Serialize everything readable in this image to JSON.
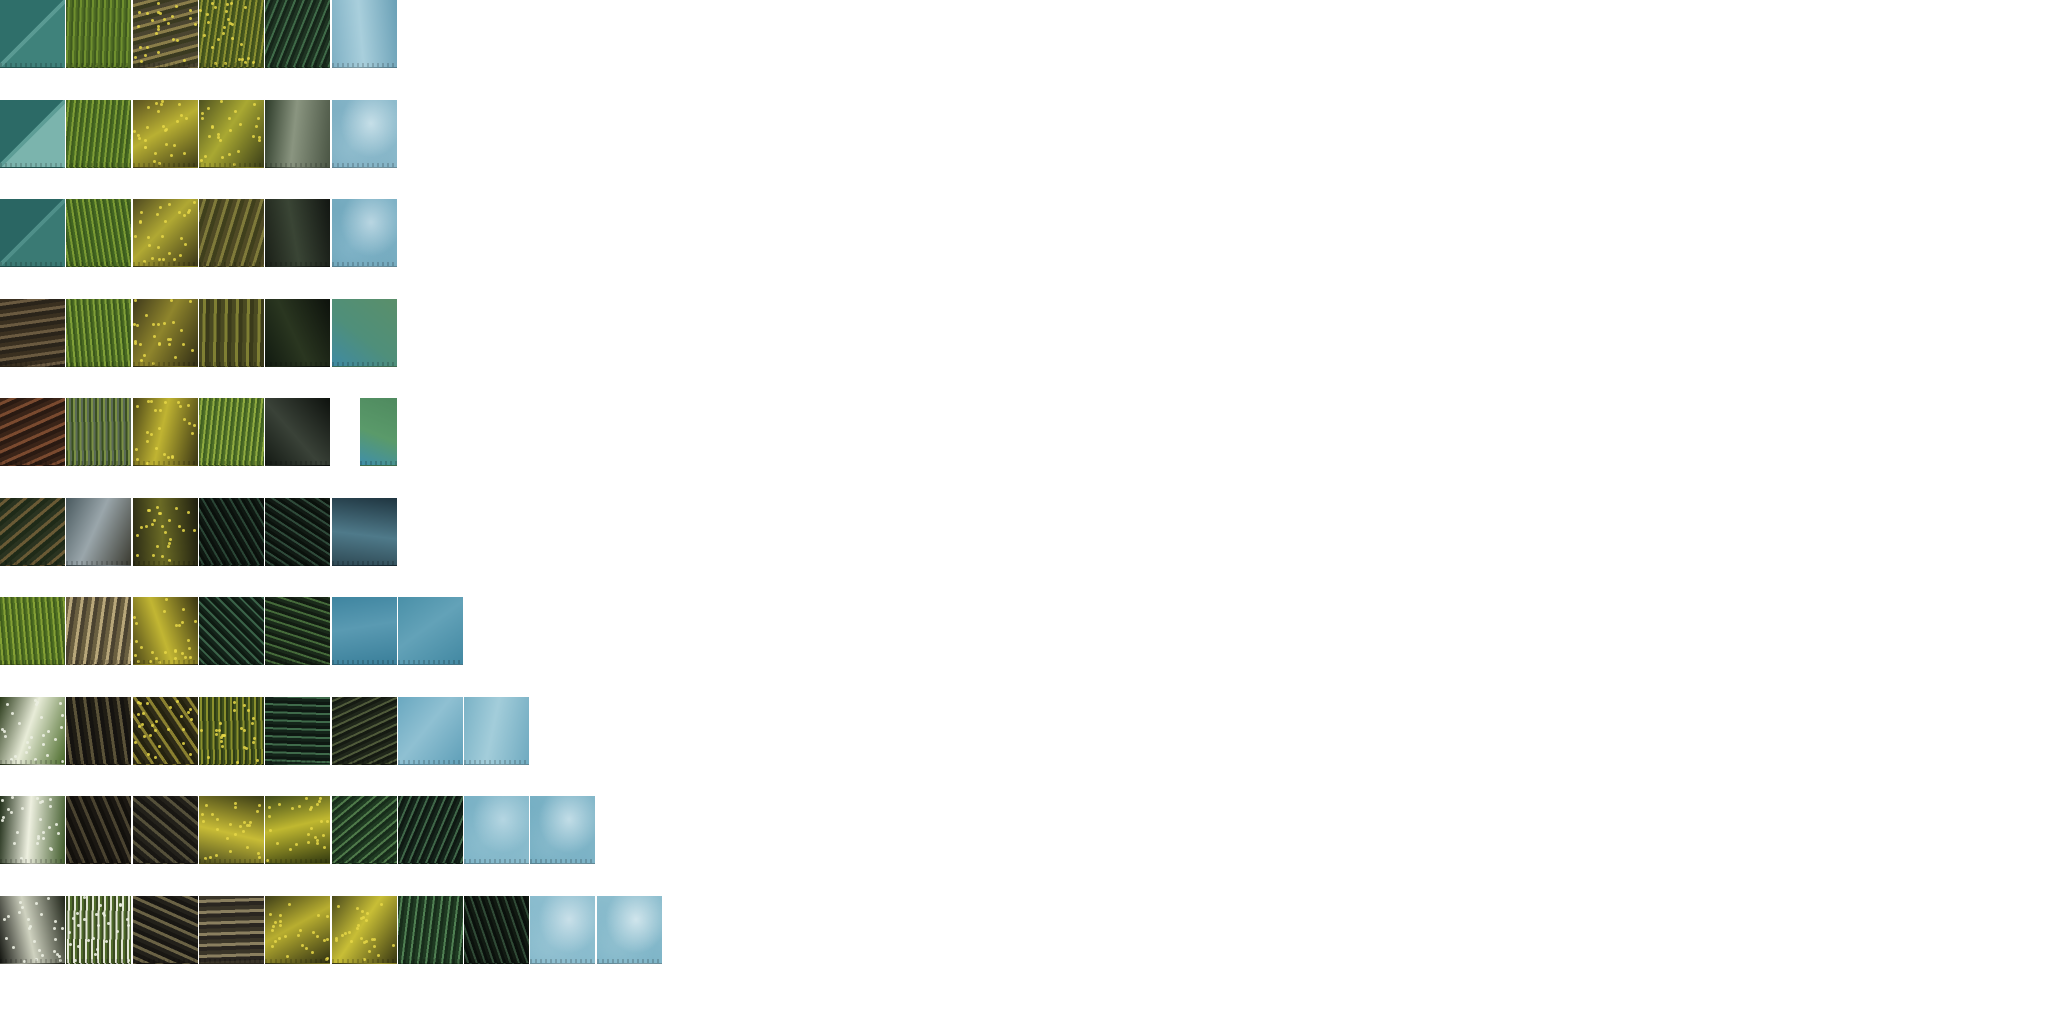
{
  "atlas": {
    "rows": [
      {
        "tiles": [
          {
            "type": "roof-teal",
            "colors": [
              "#2f6f6a",
              "#5a9a93",
              "#3f827b"
            ]
          },
          {
            "type": "grass",
            "colors": [
              "#3f5a1e",
              "#6f8f2e",
              "#4f6c24"
            ]
          },
          {
            "type": "wood-foliage",
            "colors": [
              "#4a4530",
              "#8a7d4a",
              "#3a3a20"
            ]
          },
          {
            "type": "grass-foliage",
            "colors": [
              "#4a5a20",
              "#8a8f30",
              "#3f4f1a"
            ]
          },
          {
            "type": "fern-dark",
            "colors": [
              "#1e3322",
              "#3f6a48",
              "#152519"
            ]
          },
          {
            "type": "sky",
            "colors": [
              "#7fb0c4",
              "#a9cfdc",
              "#6aa0b6"
            ]
          }
        ]
      },
      {
        "tiles": [
          {
            "type": "roof-teal",
            "colors": [
              "#2c6a66",
              "#5d9d96",
              "#7bb4ad"
            ]
          },
          {
            "type": "grass",
            "colors": [
              "#476a22",
              "#7d9c35",
              "#3e5c1d"
            ]
          },
          {
            "type": "yellow-foliage",
            "colors": [
              "#5a5220",
              "#b9b033",
              "#3f3d18"
            ]
          },
          {
            "type": "yellow-foliage",
            "colors": [
              "#4f5220",
              "#a9a832",
              "#3a3e18"
            ]
          },
          {
            "type": "rock",
            "colors": [
              "#2c3a28",
              "#8a9580",
              "#4a5544"
            ]
          },
          {
            "type": "sky-cloud",
            "colors": [
              "#78abc0",
              "#c6dfe8",
              "#8fbccd"
            ]
          }
        ]
      },
      {
        "tiles": [
          {
            "type": "roof-teal",
            "colors": [
              "#2a6663",
              "#4f8f89",
              "#3a7a74"
            ]
          },
          {
            "type": "grass",
            "colors": [
              "#436622",
              "#7a9a33",
              "#3a5a1c"
            ]
          },
          {
            "type": "yellow-foliage",
            "colors": [
              "#4f4a20",
              "#b0a833",
              "#3a3618"
            ]
          },
          {
            "type": "bark-grass",
            "colors": [
              "#4f4a25",
              "#7f7a3a",
              "#3f3f1c"
            ]
          },
          {
            "type": "dark-forest",
            "colors": [
              "#1a1f17",
              "#3a4535",
              "#121612"
            ]
          },
          {
            "type": "sky-cloud",
            "colors": [
              "#6ba3b8",
              "#b9d6e2",
              "#80b3c7"
            ]
          }
        ]
      },
      {
        "tiles": [
          {
            "type": "wood-shingle",
            "colors": [
              "#3a3020",
              "#6a5a40",
              "#2a241a"
            ]
          },
          {
            "type": "grass",
            "colors": [
              "#4a6a22",
              "#809f38",
              "#3a581c"
            ]
          },
          {
            "type": "foliage-bark",
            "colors": [
              "#3f3a1c",
              "#8f852c",
              "#2f2c15"
            ]
          },
          {
            "type": "bark-grass",
            "colors": [
              "#4a4a22",
              "#7f7f33",
              "#3a3a1a"
            ]
          },
          {
            "type": "dark-forest",
            "colors": [
              "#111a10",
              "#2a3620",
              "#0d120c"
            ]
          },
          {
            "type": "sky-ground",
            "colors": [
              "#3f8aa3",
              "#4f8f7a",
              "#5a8f6a"
            ]
          }
        ]
      },
      {
        "tiles": [
          {
            "type": "wood-red",
            "colors": [
              "#3a2418",
              "#7a4a2f",
              "#2a1a12"
            ]
          },
          {
            "type": "grass-wood",
            "colors": [
              "#3a4f22",
              "#7a8f45",
              "#5a6a55"
            ]
          },
          {
            "type": "yellow-foliage",
            "colors": [
              "#4a4518",
              "#c0b432",
              "#3a3614"
            ]
          },
          {
            "type": "grass",
            "colors": [
              "#4f6f28",
              "#8faa3f",
              "#3f5f20"
            ]
          },
          {
            "type": "dark-rock",
            "colors": [
              "#141a14",
              "#3a4238",
              "#0e120e"
            ]
          },
          {
            "type": "sky-ground-partial",
            "colors": [
              "#3f8faa",
              "#5a9a6a",
              "#4f8a5f"
            ]
          }
        ]
      },
      {
        "tiles": [
          {
            "type": "wood-green",
            "colors": [
              "#2a3320",
              "#6a5a35",
              "#1f2a18"
            ]
          },
          {
            "type": "metal-wood",
            "colors": [
              "#4a5a5f",
              "#9aa6ab",
              "#3a3a30"
            ]
          },
          {
            "type": "foliage-dark",
            "colors": [
              "#2a2a15",
              "#6a6a25",
              "#1f1f10"
            ]
          },
          {
            "type": "fern-black",
            "colors": [
              "#0f1812",
              "#2a4535",
              "#0a100c"
            ]
          },
          {
            "type": "fern-black",
            "colors": [
              "#111a14",
              "#2f4a3a",
              "#0a110c"
            ]
          },
          {
            "type": "sky-dark",
            "colors": [
              "#2f4a55",
              "#4f7a8a",
              "#1f3540"
            ]
          }
        ]
      },
      {
        "tiles": [
          {
            "type": "grass",
            "colors": [
              "#4f6f22",
              "#84a035",
              "#3f5c1c"
            ]
          },
          {
            "type": "bark-light",
            "colors": [
              "#6a5f40",
              "#b8a77a",
              "#4a4230"
            ]
          },
          {
            "type": "yellow-foliage",
            "colors": [
              "#4a4518",
              "#c2b633",
              "#383412"
            ]
          },
          {
            "type": "fern-dark",
            "colors": [
              "#14241a",
              "#3a6248",
              "#0e1a12"
            ]
          },
          {
            "type": "fern-dark",
            "colors": [
              "#1a2a1a",
              "#456a3a",
              "#121c12"
            ]
          },
          {
            "type": "sky-blue",
            "colors": [
              "#3f85a0",
              "#5a9ab2",
              "#3a7f9a"
            ]
          },
          {
            "type": "sky-blue",
            "colors": [
              "#4a90a8",
              "#63a2b8",
              "#4288a2"
            ]
          }
        ]
      },
      {
        "tiles": [
          {
            "type": "white-flowers",
            "colors": [
              "#2a3a1a",
              "#e8ecd8",
              "#4a6a2a"
            ]
          },
          {
            "type": "bark-dark",
            "colors": [
              "#1f1c14",
              "#5a5238",
              "#151310"
            ]
          },
          {
            "type": "bark-foliage",
            "colors": [
              "#2f2c18",
              "#8a8030",
              "#24220f"
            ]
          },
          {
            "type": "grass-foliage",
            "colors": [
              "#3f4f1c",
              "#8a8f2c",
              "#2f3c15"
            ]
          },
          {
            "type": "fern-dark",
            "colors": [
              "#14241a",
              "#3f6a4a",
              "#0e1812"
            ]
          },
          {
            "type": "fern-bark",
            "colors": [
              "#1f261a",
              "#4f5a3a",
              "#151a12"
            ]
          },
          {
            "type": "sky-light",
            "colors": [
              "#6aa8c0",
              "#8fc0d2",
              "#5f9fb8"
            ]
          },
          {
            "type": "sky-light",
            "colors": [
              "#7ab2c6",
              "#a3cdda",
              "#6faac0"
            ]
          }
        ]
      },
      {
        "tiles": [
          {
            "type": "white-flowers",
            "colors": [
              "#22301a",
              "#eef0e0",
              "#3f5a2a"
            ]
          },
          {
            "type": "bark-dark",
            "colors": [
              "#1a1712",
              "#4a4330",
              "#12100c"
            ]
          },
          {
            "type": "bark-dark",
            "colors": [
              "#22201a",
              "#55503a",
              "#181612"
            ]
          },
          {
            "type": "yellow-foliage",
            "colors": [
              "#4f5020",
              "#c8bc36",
              "#3a3c16"
            ]
          },
          {
            "type": "yellow-foliage",
            "colors": [
              "#3f4a1a",
              "#c0b830",
              "#30380f"
            ]
          },
          {
            "type": "fern-green",
            "colors": [
              "#1f3a22",
              "#4f7a4a",
              "#172c1a"
            ]
          },
          {
            "type": "fern-dark",
            "colors": [
              "#14241a",
              "#3f6648",
              "#0e1812"
            ]
          },
          {
            "type": "sky-cloud",
            "colors": [
              "#78b0c4",
              "#b5d6e2",
              "#8abccd"
            ]
          },
          {
            "type": "sky-cloud",
            "colors": [
              "#6fabc0",
              "#c2dde7",
              "#85b8ca"
            ]
          }
        ]
      },
      {
        "tiles": [
          {
            "type": "dark-flowers",
            "colors": [
              "#12140f",
              "#cfd2c0",
              "#1f2418"
            ]
          },
          {
            "type": "grass-flowers",
            "colors": [
              "#3a4a22",
              "#e2e6d4",
              "#4f6a2a"
            ]
          },
          {
            "type": "bark-dark",
            "colors": [
              "#22201a",
              "#6a6245",
              "#181612"
            ]
          },
          {
            "type": "bark-light",
            "colors": [
              "#3a3528",
              "#8a7f5f",
              "#2a2620"
            ]
          },
          {
            "type": "yellow-foliage",
            "colors": [
              "#3f3f18",
              "#b8ae30",
              "#2f3012"
            ]
          },
          {
            "type": "yellow-foliage",
            "colors": [
              "#4a4a1c",
              "#c8be36",
              "#363612"
            ]
          },
          {
            "type": "fern-green",
            "colors": [
              "#1f3a22",
              "#4f7f52",
              "#172c1a"
            ]
          },
          {
            "type": "fern-dark",
            "colors": [
              "#111a12",
              "#304a36",
              "#0a100c"
            ]
          },
          {
            "type": "sky-cloud",
            "colors": [
              "#80b6c9",
              "#c9e0e9",
              "#94c2d2"
            ]
          },
          {
            "type": "sky-cloud",
            "colors": [
              "#7ab2c6",
              "#d0e5ec",
              "#8fbfcf"
            ]
          }
        ]
      }
    ]
  }
}
